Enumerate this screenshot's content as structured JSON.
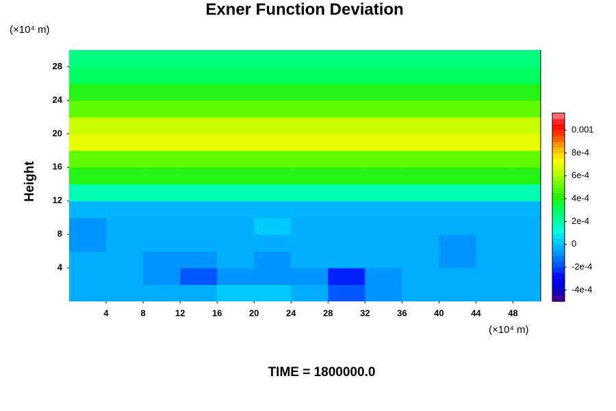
{
  "chart_data": {
    "type": "contour",
    "title": "Exner Function Deviation",
    "y_label": "Height",
    "y_unit": "(×10⁴ m)",
    "x_unit": "(×10⁴ m)",
    "footer": "TIME = 1800000.0",
    "xlim": [
      0,
      51
    ],
    "ylim": [
      0,
      30
    ],
    "xticks": [
      4,
      8,
      12,
      16,
      20,
      24,
      28,
      32,
      36,
      40,
      44,
      48
    ],
    "yticks": [
      4,
      8,
      12,
      16,
      20,
      24,
      28
    ],
    "x": [
      2,
      6,
      10,
      14,
      18,
      22,
      26,
      30,
      34,
      38,
      42,
      46,
      50
    ],
    "y": [
      1,
      3,
      5,
      7,
      9,
      11,
      13,
      15,
      17,
      19,
      21,
      23,
      25,
      27,
      29
    ],
    "z": [
      [
        -3e-05,
        -3e-05,
        -3e-05,
        -3e-05,
        2e-05,
        2e-05,
        -3e-05,
        -0.00018,
        -8e-05,
        -3e-05,
        -3e-05,
        -3e-05,
        -3e-05
      ],
      [
        -3e-05,
        -3e-05,
        -8e-05,
        -0.00018,
        -8e-05,
        -8e-05,
        -8e-05,
        -0.00025,
        -8e-05,
        -3e-05,
        -3e-05,
        -3e-05,
        -3e-05
      ],
      [
        -3e-05,
        -3e-05,
        -8e-05,
        -8e-05,
        -3e-05,
        -8e-05,
        -3e-05,
        -3e-05,
        -3e-05,
        -3e-05,
        -8e-05,
        -3e-05,
        -3e-05
      ],
      [
        -8e-05,
        -3e-05,
        -3e-05,
        -3e-05,
        -3e-05,
        -3e-05,
        -3e-05,
        -3e-05,
        -3e-05,
        -3e-05,
        -8e-05,
        -3e-05,
        -3e-05
      ],
      [
        -8e-05,
        -3e-05,
        -3e-05,
        -3e-05,
        -3e-05,
        2e-05,
        -3e-05,
        -3e-05,
        -3e-05,
        -3e-05,
        -3e-05,
        -3e-05,
        -3e-05
      ],
      [
        -2e-05,
        -2e-05,
        -2e-05,
        -2e-05,
        -2e-05,
        -2e-05,
        -2e-05,
        -2e-05,
        -2e-05,
        -2e-05,
        -2e-05,
        -2e-05,
        -2e-05
      ],
      [
        0.00018,
        0.00018,
        0.00018,
        0.00018,
        0.00018,
        0.00018,
        0.00018,
        0.00018,
        0.00018,
        0.00018,
        0.00018,
        0.00018,
        0.00018
      ],
      [
        0.0004,
        0.0004,
        0.0004,
        0.0004,
        0.0004,
        0.0004,
        0.0004,
        0.0004,
        0.0004,
        0.0004,
        0.0004,
        0.0004,
        0.0004
      ],
      [
        0.0005,
        0.0005,
        0.0005,
        0.0005,
        0.0005,
        0.0005,
        0.0005,
        0.0005,
        0.0005,
        0.0005,
        0.0005,
        0.0005,
        0.0005
      ],
      [
        0.0007,
        0.0007,
        0.0007,
        0.0007,
        0.0007,
        0.0007,
        0.0007,
        0.0007,
        0.0007,
        0.0007,
        0.0007,
        0.0007,
        0.0007
      ],
      [
        0.00065,
        0.00065,
        0.00065,
        0.00065,
        0.00065,
        0.00065,
        0.00065,
        0.00065,
        0.00065,
        0.00065,
        0.00065,
        0.00065,
        0.00065
      ],
      [
        0.0005,
        0.0005,
        0.0005,
        0.0005,
        0.0005,
        0.0005,
        0.0005,
        0.0005,
        0.0005,
        0.0005,
        0.0005,
        0.0005,
        0.0005
      ],
      [
        0.0004,
        0.0004,
        0.0004,
        0.0004,
        0.0004,
        0.0004,
        0.0004,
        0.0004,
        0.0004,
        0.0004,
        0.0004,
        0.0004,
        0.0004
      ],
      [
        0.0003,
        0.0003,
        0.0003,
        0.0003,
        0.0003,
        0.0003,
        0.0003,
        0.0003,
        0.0003,
        0.0003,
        0.0003,
        0.0003,
        0.0003
      ],
      [
        0.00025,
        0.00025,
        0.00025,
        0.00025,
        0.00025,
        0.00025,
        0.00025,
        0.00025,
        0.00025,
        0.00025,
        0.00025,
        0.00025,
        0.00025
      ]
    ],
    "zlim": [
      -0.0005,
      0.00115
    ],
    "zticks": [
      {
        "value": -0.0004,
        "label": "-4e-4"
      },
      {
        "value": -0.0002,
        "label": "-2e-4"
      },
      0,
      {
        "value": 0.0002,
        "label": "2e-4"
      },
      {
        "value": 0.0004,
        "label": "4e-4"
      },
      {
        "value": 0.0006,
        "label": "6e-4"
      },
      {
        "value": 0.0008,
        "label": "8e-4"
      },
      0.001
    ],
    "colormap": [
      "#5a007f",
      "#0000c8",
      "#0000ff",
      "#0050ff",
      "#0090ff",
      "#00c8ff",
      "#00ffe0",
      "#00ff90",
      "#00ff50",
      "#30f000",
      "#70ff00",
      "#c0ff00",
      "#ffff00",
      "#ffb000",
      "#ff5000",
      "#ff0000",
      "#ff9090"
    ]
  }
}
